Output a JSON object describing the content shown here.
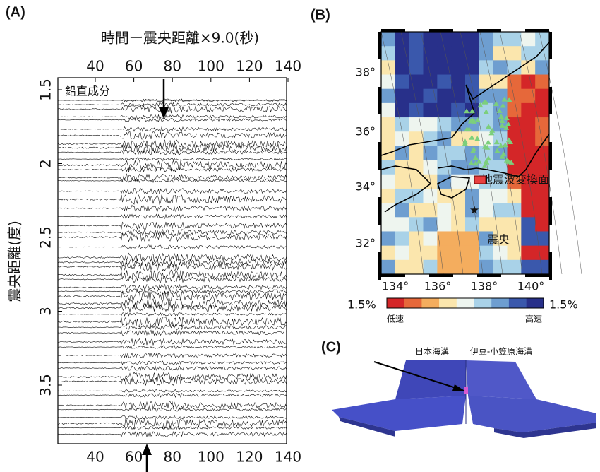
{
  "panel_a": {
    "label": "(A)",
    "x_axis_title": "時間ー震央距離×9.0(秒)",
    "y_axis_title": "震央距離(度)",
    "annotation": "鉛直成分",
    "x_ticks": [
      40,
      60,
      80,
      100,
      120,
      140
    ],
    "y_ticks": [
      1.5,
      2,
      2.5,
      3,
      3.5
    ]
  },
  "panel_b": {
    "label": "(B)",
    "lat_ticks": [
      "38°",
      "36°",
      "34°",
      "32°"
    ],
    "lon_ticks": [
      "134°",
      "136°",
      "138°",
      "140°"
    ],
    "conversion_label": "地震波変換面",
    "epicenter_label": "震央",
    "colorbar": {
      "min_label": "1.5%",
      "max_label": "1.5%",
      "low_label": "低速",
      "high_label": "高速"
    }
  },
  "panel_c": {
    "label": "(C)",
    "japan_trench": "日本海溝",
    "izu_bonin_trench": "伊豆-小笠原海溝"
  }
}
